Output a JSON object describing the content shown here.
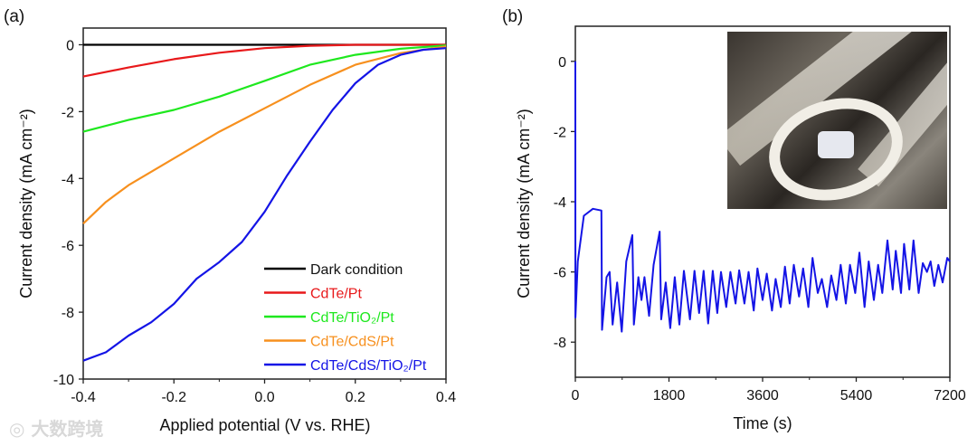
{
  "chart_data": [
    {
      "panel_label": "(a)",
      "type": "line",
      "xlabel": "Applied potential (V vs. RHE)",
      "ylabel": "Current density (mA cm⁻²)",
      "xlim": [
        -0.4,
        0.4
      ],
      "ylim": [
        -10,
        0.5
      ],
      "xticks": [
        -0.4,
        -0.2,
        0.0,
        0.2,
        0.4
      ],
      "xtick_labels": [
        "-0.4",
        "-0.2",
        "0.0",
        "0.2",
        "0.4"
      ],
      "yticks": [
        -10,
        -8,
        -6,
        -4,
        -2,
        0
      ],
      "ytick_labels": [
        "-10",
        "-8",
        "-6",
        "-4",
        "-2",
        "0"
      ],
      "legend_position": "bottom-right",
      "grid": false,
      "series": [
        {
          "name": "Dark condition",
          "color": "#000000",
          "points": [
            [
              -0.4,
              0
            ],
            [
              0.4,
              0
            ]
          ]
        },
        {
          "name": "CdTe/Pt",
          "color": "#e8191b",
          "points": [
            [
              -0.4,
              -0.95
            ],
            [
              -0.3,
              -0.68
            ],
            [
              -0.2,
              -0.43
            ],
            [
              -0.1,
              -0.24
            ],
            [
              0,
              -0.1
            ],
            [
              0.1,
              -0.03
            ],
            [
              0.2,
              0
            ],
            [
              0.4,
              0
            ]
          ]
        },
        {
          "name": "CdTe/TiO₂/Pt",
          "color": "#1ee81e",
          "points": [
            [
              -0.4,
              -2.6
            ],
            [
              -0.3,
              -2.25
            ],
            [
              -0.2,
              -1.95
            ],
            [
              -0.1,
              -1.55
            ],
            [
              0,
              -1.08
            ],
            [
              0.1,
              -0.6
            ],
            [
              0.2,
              -0.3
            ],
            [
              0.3,
              -0.12
            ],
            [
              0.4,
              -0.02
            ]
          ]
        },
        {
          "name": "CdTe/CdS/Pt",
          "color": "#f7901e",
          "points": [
            [
              -0.4,
              -5.35
            ],
            [
              -0.35,
              -4.7
            ],
            [
              -0.3,
              -4.2
            ],
            [
              -0.2,
              -3.4
            ],
            [
              -0.1,
              -2.6
            ],
            [
              0,
              -1.9
            ],
            [
              0.1,
              -1.2
            ],
            [
              0.2,
              -0.6
            ],
            [
              0.3,
              -0.25
            ],
            [
              0.4,
              -0.05
            ]
          ]
        },
        {
          "name": "CdTe/CdS/TiO₂/Pt",
          "color": "#1414e6",
          "points": [
            [
              -0.4,
              -9.45
            ],
            [
              -0.35,
              -9.2
            ],
            [
              -0.3,
              -8.7
            ],
            [
              -0.25,
              -8.3
            ],
            [
              -0.2,
              -7.75
            ],
            [
              -0.15,
              -7.0
            ],
            [
              -0.1,
              -6.5
            ],
            [
              -0.05,
              -5.9
            ],
            [
              0,
              -5.0
            ],
            [
              0.05,
              -3.9
            ],
            [
              0.1,
              -2.9
            ],
            [
              0.15,
              -1.95
            ],
            [
              0.2,
              -1.15
            ],
            [
              0.25,
              -0.6
            ],
            [
              0.3,
              -0.3
            ],
            [
              0.35,
              -0.15
            ],
            [
              0.4,
              -0.1
            ]
          ]
        }
      ]
    },
    {
      "panel_label": "(b)",
      "type": "line",
      "xlabel": "Time (s)",
      "ylabel": "Current density (mA cm⁻²)",
      "xlim": [
        0,
        7200
      ],
      "ylim": [
        -9,
        1
      ],
      "xticks": [
        0,
        1800,
        3600,
        5400,
        7200
      ],
      "xtick_labels": [
        "0",
        "1800",
        "3600",
        "5400",
        "7200"
      ],
      "yticks": [
        -8,
        -6,
        -4,
        -2,
        0
      ],
      "ytick_labels": [
        "-8",
        "-6",
        "-4",
        "-2",
        "0"
      ],
      "grid": false,
      "inset": "photo of electrode in cell",
      "series": [
        {
          "name": "CdTe/CdS/TiO₂/Pt",
          "color": "#1414e6",
          "points": [
            [
              0,
              0
            ],
            [
              2,
              -7.3
            ],
            [
              47,
              -5.7
            ],
            [
              163,
              -4.4
            ],
            [
              338,
              -4.2
            ],
            [
              501,
              -4.25
            ],
            [
              513,
              -7.65
            ],
            [
              600,
              -6.15
            ],
            [
              659,
              -6
            ],
            [
              717,
              -7.5
            ],
            [
              804,
              -6.3
            ],
            [
              892,
              -7.7
            ],
            [
              979,
              -5.7
            ],
            [
              1096,
              -4.95
            ],
            [
              1125,
              -7.5
            ],
            [
              1213,
              -6.15
            ],
            [
              1271,
              -6.8
            ],
            [
              1329,
              -6.15
            ],
            [
              1417,
              -7.25
            ],
            [
              1504,
              -5.8
            ],
            [
              1621,
              -4.85
            ],
            [
              1650,
              -7.35
            ],
            [
              1737,
              -6.3
            ],
            [
              1825,
              -7.6
            ],
            [
              1912,
              -6.15
            ],
            [
              2000,
              -7.5
            ],
            [
              2087,
              -5.97
            ],
            [
              2204,
              -7.35
            ],
            [
              2291,
              -5.97
            ],
            [
              2379,
              -7.17
            ],
            [
              2466,
              -5.97
            ],
            [
              2553,
              -7.47
            ],
            [
              2641,
              -5.97
            ],
            [
              2728,
              -7.17
            ],
            [
              2800,
              -6.0
            ],
            [
              2900,
              -7.0
            ],
            [
              2980,
              -6.0
            ],
            [
              3080,
              -6.9
            ],
            [
              3150,
              -5.95
            ],
            [
              3250,
              -6.9
            ],
            [
              3330,
              -6.0
            ],
            [
              3430,
              -7.1
            ],
            [
              3500,
              -5.9
            ],
            [
              3600,
              -6.8
            ],
            [
              3680,
              -6.05
            ],
            [
              3780,
              -7.1
            ],
            [
              3850,
              -6.2
            ],
            [
              3950,
              -7.0
            ],
            [
              4030,
              -5.85
            ],
            [
              4120,
              -6.9
            ],
            [
              4200,
              -5.8
            ],
            [
              4300,
              -6.7
            ],
            [
              4380,
              -5.9
            ],
            [
              4480,
              -7.0
            ],
            [
              4560,
              -5.6
            ],
            [
              4660,
              -6.6
            ],
            [
              4740,
              -6.2
            ],
            [
              4840,
              -7.0
            ],
            [
              4920,
              -6.1
            ],
            [
              5020,
              -6.8
            ],
            [
              5100,
              -5.8
            ],
            [
              5200,
              -6.9
            ],
            [
              5280,
              -5.8
            ],
            [
              5380,
              -6.6
            ],
            [
              5460,
              -5.45
            ],
            [
              5560,
              -7.0
            ],
            [
              5640,
              -5.7
            ],
            [
              5740,
              -6.8
            ],
            [
              5820,
              -5.8
            ],
            [
              5900,
              -6.6
            ],
            [
              6000,
              -5.1
            ],
            [
              6100,
              -6.5
            ],
            [
              6160,
              -5.4
            ],
            [
              6260,
              -6.6
            ],
            [
              6320,
              -5.2
            ],
            [
              6420,
              -6.5
            ],
            [
              6500,
              -5.1
            ],
            [
              6600,
              -6.6
            ],
            [
              6680,
              -5.75
            ],
            [
              6760,
              -6.0
            ],
            [
              6830,
              -5.7
            ],
            [
              6900,
              -6.4
            ],
            [
              6980,
              -5.8
            ],
            [
              7060,
              -6.3
            ],
            [
              7150,
              -5.6
            ],
            [
              7200,
              -5.7
            ]
          ]
        }
      ]
    }
  ],
  "watermark": "大数跨境"
}
